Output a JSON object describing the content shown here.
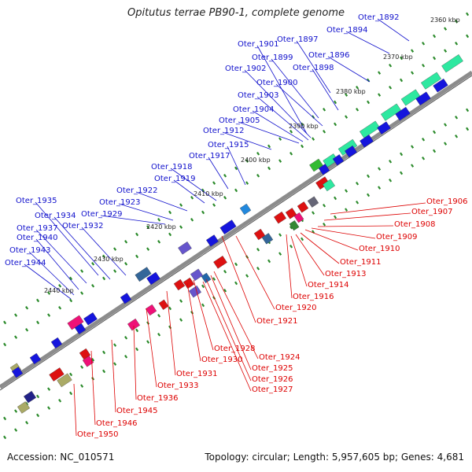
{
  "title": "Opitutus terrae PB90-1, complete genome",
  "footer": {
    "accession": "Accession: NC_010571",
    "summary": "Topology: circular; Length: 5,957,605 bp; Genes: 4,681"
  },
  "colors": {
    "forward_label": "#1010cc",
    "reverse_label": "#dd0000",
    "backbone": "#888888",
    "tick_marks": "#2a8a2a"
  },
  "kbp_ticks": [
    "2360 kbp",
    "2370 kbp",
    "2380 kbp",
    "2390 kbp",
    "2400 kbp",
    "2410 kbp",
    "2420 kbp",
    "2430 kbp",
    "2440 kbp"
  ],
  "forward_labels": [
    "Oter_1892",
    "Oter_1894",
    "Oter_1896",
    "Oter_1897",
    "Oter_1898",
    "Oter_1899",
    "Oter_1900",
    "Oter_1901",
    "Oter_1902",
    "Oter_1903",
    "Oter_1904",
    "Oter_1905",
    "Oter_1912",
    "Oter_1915",
    "Oter_1917",
    "Oter_1918",
    "Oter_1919",
    "Oter_1922",
    "Oter_1923",
    "Oter_1929",
    "Oter_1932",
    "Oter_1934",
    "Oter_1935",
    "Oter_1937",
    "Oter_1940",
    "Oter_1943",
    "Oter_1944"
  ],
  "reverse_labels": [
    "Oter_1906",
    "Oter_1907",
    "Oter_1908",
    "Oter_1909",
    "Oter_1910",
    "Oter_1911",
    "Oter_1913",
    "Oter_1914",
    "Oter_1916",
    "Oter_1920",
    "Oter_1921",
    "Oter_1924",
    "Oter_1925",
    "Oter_1926",
    "Oter_1927",
    "Oter_1928",
    "Oter_1930",
    "Oter_1931",
    "Oter_1933",
    "Oter_1936",
    "Oter_1945",
    "Oter_1946",
    "Oter_1950"
  ]
}
